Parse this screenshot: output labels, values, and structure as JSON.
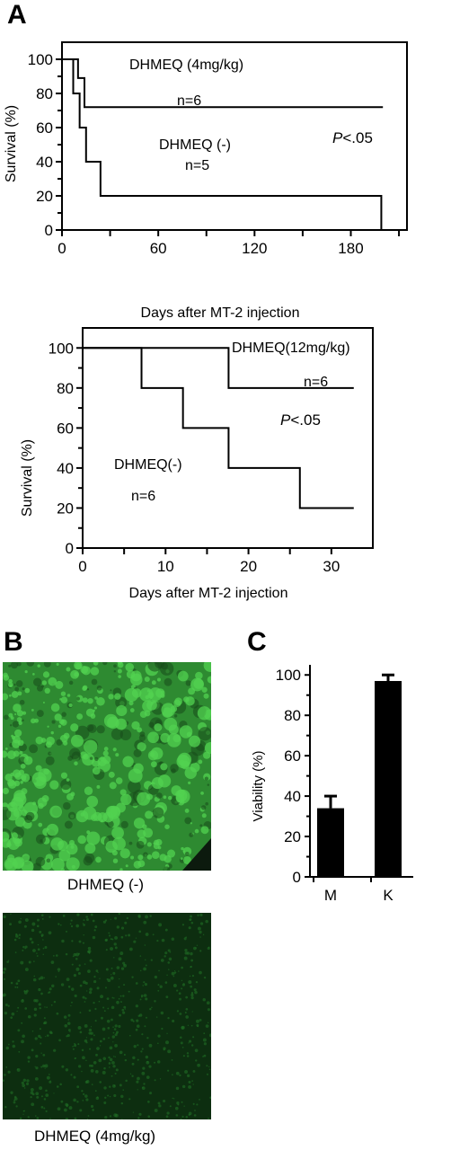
{
  "panels": {
    "a": "A",
    "b": "B",
    "c": "C"
  },
  "colors": {
    "axis": "#000000",
    "bar": "#000000",
    "micro_bright_bg": "#2e8a31",
    "micro_bright_spot": "#52d150",
    "micro_dim_bg": "#0d2e10",
    "micro_dim_spot": "#1f6e24"
  },
  "chart_data": [
    {
      "type": "line",
      "step": true,
      "xlabel": "Days after MT-2 injection",
      "ylabel": "Survival (%)",
      "xlim": [
        0,
        215
      ],
      "ylim": [
        0,
        110
      ],
      "xticks": [
        0,
        60,
        120,
        180
      ],
      "yticks": [
        0,
        20,
        40,
        60,
        80,
        100
      ],
      "series": [
        {
          "name": "DHMEQ (4mg/kg)",
          "n_label": "n=6",
          "x": [
            0,
            10,
            10,
            14,
            14,
            200
          ],
          "y": [
            100,
            100,
            89,
            89,
            72,
            72
          ]
        },
        {
          "name": "DHMEQ (-)",
          "n_label": "n=5",
          "x": [
            0,
            7,
            7,
            11,
            11,
            15,
            15,
            24,
            24,
            199,
            199
          ],
          "y": [
            100,
            100,
            80,
            80,
            60,
            60,
            40,
            40,
            20,
            20,
            0
          ]
        }
      ],
      "annotations": [
        {
          "text": "DHMEQ (4mg/kg)"
        },
        {
          "text": "n=6"
        },
        {
          "text": "DHMEQ (-)"
        },
        {
          "text": "n=5"
        },
        {
          "text": "P<.05"
        }
      ]
    },
    {
      "type": "line",
      "step": true,
      "title": "Days after MT-2 injection",
      "xlabel": "Days after MT-2 injection",
      "ylabel": "Survival (%)",
      "xlim": [
        0,
        35
      ],
      "ylim": [
        0,
        110
      ],
      "xticks": [
        0,
        10,
        20,
        30
      ],
      "yticks": [
        0,
        20,
        40,
        60,
        80,
        100
      ],
      "series": [
        {
          "name": "DHMEQ(12mg/kg)",
          "n_label": "n=6",
          "x": [
            0,
            17.6,
            17.6,
            32.7
          ],
          "y": [
            100,
            100,
            80,
            80
          ]
        },
        {
          "name": "DHMEQ(-)",
          "n_label": "n=6",
          "x": [
            0,
            7.1,
            7.1,
            12.1,
            12.1,
            17.6,
            17.6,
            26.2,
            26.2,
            32.7
          ],
          "y": [
            100,
            100,
            80,
            80,
            60,
            60,
            40,
            40,
            20,
            20
          ]
        }
      ],
      "annotations": [
        {
          "text": "DHMEQ(12mg/kg)"
        },
        {
          "text": "n=6"
        },
        {
          "text": "P<.05"
        },
        {
          "text": "DHMEQ(-)"
        },
        {
          "text": "n=6"
        }
      ]
    },
    {
      "type": "bar",
      "ylabel": "Viability (%)",
      "ylim": [
        0,
        105
      ],
      "yticks": [
        0,
        20,
        40,
        60,
        80,
        100
      ],
      "categories": [
        "M",
        "K"
      ],
      "values": [
        34,
        97
      ],
      "errors": [
        6,
        3
      ]
    }
  ],
  "micrographs": [
    {
      "label": "DHMEQ (-)"
    },
    {
      "label": "DHMEQ (4mg/kg)"
    }
  ]
}
